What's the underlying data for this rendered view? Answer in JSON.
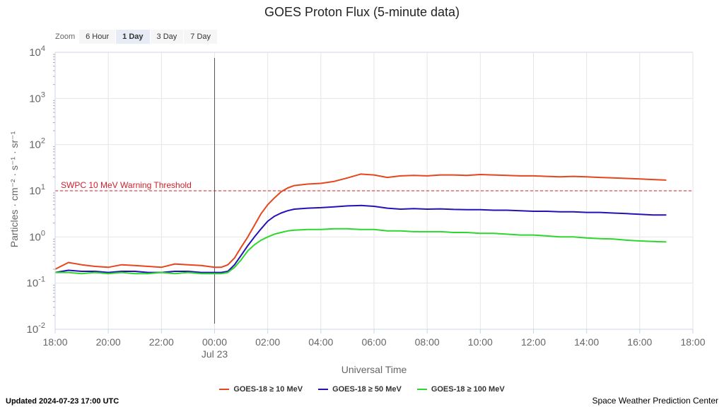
{
  "title": "GOES Proton Flux (5-minute data)",
  "zoom": {
    "label": "Zoom",
    "buttons": [
      "6 Hour",
      "1 Day",
      "3 Day",
      "7 Day"
    ],
    "active": "1 Day"
  },
  "updated": "Updated 2024-07-23 17:00 UTC",
  "credit": "Space Weather Prediction Center",
  "colors": {
    "s10": "#e5461e",
    "s50": "#2412b7",
    "s100": "#2ed62e",
    "threshold": "#cc1f2d"
  },
  "chart_data": {
    "type": "line",
    "xlabel": "Universal Time",
    "ylabel": "Particles · cm⁻² · s⁻¹ · sr⁻¹",
    "x_unit": "hours (UTC) relative to 2024-07-23 00:00",
    "xlim": [
      -6,
      18
    ],
    "y_scale": "log",
    "ylim": [
      0.01,
      10000
    ],
    "y_ticks": [
      {
        "base": "10",
        "exp": "-2"
      },
      {
        "base": "10",
        "exp": "-1"
      },
      {
        "base": "10",
        "exp": "0"
      },
      {
        "base": "10",
        "exp": "1"
      },
      {
        "base": "10",
        "exp": "2"
      },
      {
        "base": "10",
        "exp": "3"
      },
      {
        "base": "10",
        "exp": "4"
      }
    ],
    "x_ticks": [
      {
        "x": -6,
        "label": "18:00"
      },
      {
        "x": -4,
        "label": "20:00"
      },
      {
        "x": -2,
        "label": "22:00"
      },
      {
        "x": 0,
        "label": "00:00",
        "sublabel": "Jul 23"
      },
      {
        "x": 2,
        "label": "02:00"
      },
      {
        "x": 4,
        "label": "04:00"
      },
      {
        "x": 6,
        "label": "06:00"
      },
      {
        "x": 8,
        "label": "08:00"
      },
      {
        "x": 10,
        "label": "10:00"
      },
      {
        "x": 12,
        "label": "12:00"
      },
      {
        "x": 14,
        "label": "14:00"
      },
      {
        "x": 16,
        "label": "16:00"
      },
      {
        "x": 18,
        "label": "18:00"
      }
    ],
    "grid": true,
    "day_marker_x": 0,
    "threshold": {
      "value": 10,
      "label": "SWPC 10 MeV Warning Threshold"
    },
    "legend_position": "bottom",
    "series": [
      {
        "name": "GOES-18 ≥ 10 MeV",
        "x": [
          -6,
          -5.5,
          -5,
          -4.5,
          -4,
          -3.5,
          -3,
          -2.5,
          -2,
          -1.5,
          -1,
          -0.5,
          0,
          0.25,
          0.5,
          0.75,
          1,
          1.25,
          1.5,
          1.75,
          2,
          2.25,
          2.5,
          2.75,
          3,
          3.5,
          4,
          4.5,
          5,
          5.5,
          6,
          6.5,
          7,
          7.5,
          8,
          8.5,
          9,
          9.5,
          10,
          10.5,
          11,
          11.5,
          12,
          12.5,
          13,
          13.5,
          14,
          14.5,
          15,
          15.5,
          16,
          16.5,
          17
        ],
        "y": [
          0.2,
          0.28,
          0.25,
          0.23,
          0.22,
          0.25,
          0.24,
          0.23,
          0.22,
          0.26,
          0.25,
          0.24,
          0.22,
          0.22,
          0.25,
          0.35,
          0.6,
          1.0,
          1.8,
          3.2,
          5,
          7,
          9.5,
          11.5,
          13,
          14,
          14.5,
          16,
          19,
          23,
          22,
          19.5,
          21,
          21.5,
          21,
          22,
          22,
          21.5,
          22.5,
          22,
          21.5,
          21,
          21,
          20.5,
          20,
          20.5,
          20,
          19.5,
          19,
          18.5,
          18,
          17.5,
          17
        ]
      },
      {
        "name": "GOES-18 ≥ 50 MeV",
        "x": [
          -6,
          -5.5,
          -5,
          -4.5,
          -4,
          -3.5,
          -3,
          -2.5,
          -2,
          -1.5,
          -1,
          -0.5,
          0,
          0.25,
          0.5,
          0.75,
          1,
          1.25,
          1.5,
          1.75,
          2,
          2.25,
          2.5,
          2.75,
          3,
          3.5,
          4,
          4.5,
          5,
          5.5,
          6,
          6.5,
          7,
          7.5,
          8,
          8.5,
          9,
          9.5,
          10,
          10.5,
          11,
          11.5,
          12,
          12.5,
          13,
          13.5,
          14,
          14.5,
          15,
          15.5,
          16,
          16.5,
          17
        ],
        "y": [
          0.17,
          0.19,
          0.18,
          0.18,
          0.17,
          0.18,
          0.18,
          0.17,
          0.17,
          0.18,
          0.18,
          0.17,
          0.17,
          0.17,
          0.18,
          0.25,
          0.4,
          0.65,
          1.0,
          1.5,
          2.2,
          2.8,
          3.3,
          3.7,
          4.0,
          4.2,
          4.3,
          4.5,
          4.7,
          4.8,
          4.6,
          4.2,
          4.0,
          4.1,
          4.0,
          4.05,
          3.95,
          3.9,
          3.9,
          3.8,
          3.8,
          3.7,
          3.6,
          3.6,
          3.5,
          3.5,
          3.4,
          3.4,
          3.3,
          3.2,
          3.1,
          3.0,
          3.0
        ]
      },
      {
        "name": "GOES-18 ≥ 100 MeV",
        "x": [
          -6,
          -5.5,
          -5,
          -4.5,
          -4,
          -3.5,
          -3,
          -2.5,
          -2,
          -1.5,
          -1,
          -0.5,
          0,
          0.25,
          0.5,
          0.75,
          1,
          1.25,
          1.5,
          1.75,
          2,
          2.25,
          2.5,
          2.75,
          3,
          3.5,
          4,
          4.5,
          5,
          5.5,
          6,
          6.5,
          7,
          7.5,
          8,
          8.5,
          9,
          9.5,
          10,
          10.5,
          11,
          11.5,
          12,
          12.5,
          13,
          13.5,
          14,
          14.5,
          15,
          15.5,
          16,
          16.5,
          17
        ],
        "y": [
          0.17,
          0.17,
          0.16,
          0.17,
          0.16,
          0.17,
          0.16,
          0.16,
          0.17,
          0.16,
          0.17,
          0.16,
          0.16,
          0.16,
          0.17,
          0.22,
          0.32,
          0.5,
          0.68,
          0.85,
          1.0,
          1.15,
          1.25,
          1.35,
          1.4,
          1.45,
          1.45,
          1.5,
          1.5,
          1.45,
          1.45,
          1.35,
          1.35,
          1.3,
          1.3,
          1.3,
          1.25,
          1.25,
          1.2,
          1.2,
          1.15,
          1.1,
          1.1,
          1.05,
          1.0,
          1.0,
          0.95,
          0.92,
          0.9,
          0.85,
          0.82,
          0.8,
          0.78
        ]
      }
    ]
  }
}
